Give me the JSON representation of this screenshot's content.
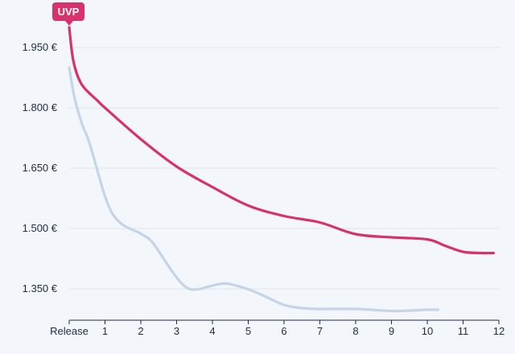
{
  "chart_data": {
    "type": "line",
    "title": "",
    "xlabel": "",
    "ylabel": "",
    "x_ticks": [
      "Release",
      "1",
      "2",
      "3",
      "4",
      "5",
      "6",
      "7",
      "8",
      "9",
      "10",
      "11",
      "12"
    ],
    "y_ticks": [
      "1.350 €",
      "1.500 €",
      "1.650 €",
      "1.800 €",
      "1.950 €"
    ],
    "y_tick_values": [
      1350,
      1500,
      1650,
      1800,
      1950
    ],
    "xlim": [
      0,
      12
    ],
    "ylim": [
      1290,
      2010
    ],
    "grid": "horizontal",
    "annotations": [
      {
        "text": "UVP",
        "x": 0,
        "y": 2000,
        "color": "#d6336c"
      }
    ],
    "series": [
      {
        "key": "uvp-series",
        "color": "#d6336c",
        "x": [
          0,
          0.12,
          0.35,
          0.8,
          1.0,
          2.0,
          3.0,
          4.0,
          5.0,
          6.0,
          7.0,
          8.0,
          9.0,
          10.0,
          10.5,
          11.0,
          11.5,
          11.85
        ],
        "y": [
          2000,
          1915,
          1858,
          1817,
          1800,
          1722,
          1654,
          1603,
          1557,
          1531,
          1515,
          1486,
          1478,
          1473,
          1457,
          1442,
          1439,
          1439
        ]
      },
      {
        "key": "price-series",
        "color": "#c5d4e6",
        "x": [
          0,
          0.15,
          0.35,
          0.55,
          0.8,
          1.0,
          1.2,
          1.5,
          2.0,
          2.3,
          2.6,
          3.0,
          3.3,
          3.6,
          4.0,
          4.4,
          5.0,
          5.5,
          6.0,
          6.5,
          7.0,
          8.0,
          9.0,
          9.5,
          10.0,
          10.3
        ],
        "y": [
          1900,
          1825,
          1762,
          1717,
          1640,
          1580,
          1538,
          1509,
          1487,
          1468,
          1430,
          1378,
          1352,
          1349,
          1358,
          1363,
          1349,
          1330,
          1310,
          1302,
          1300,
          1300,
          1295,
          1296,
          1298,
          1298
        ]
      }
    ]
  }
}
